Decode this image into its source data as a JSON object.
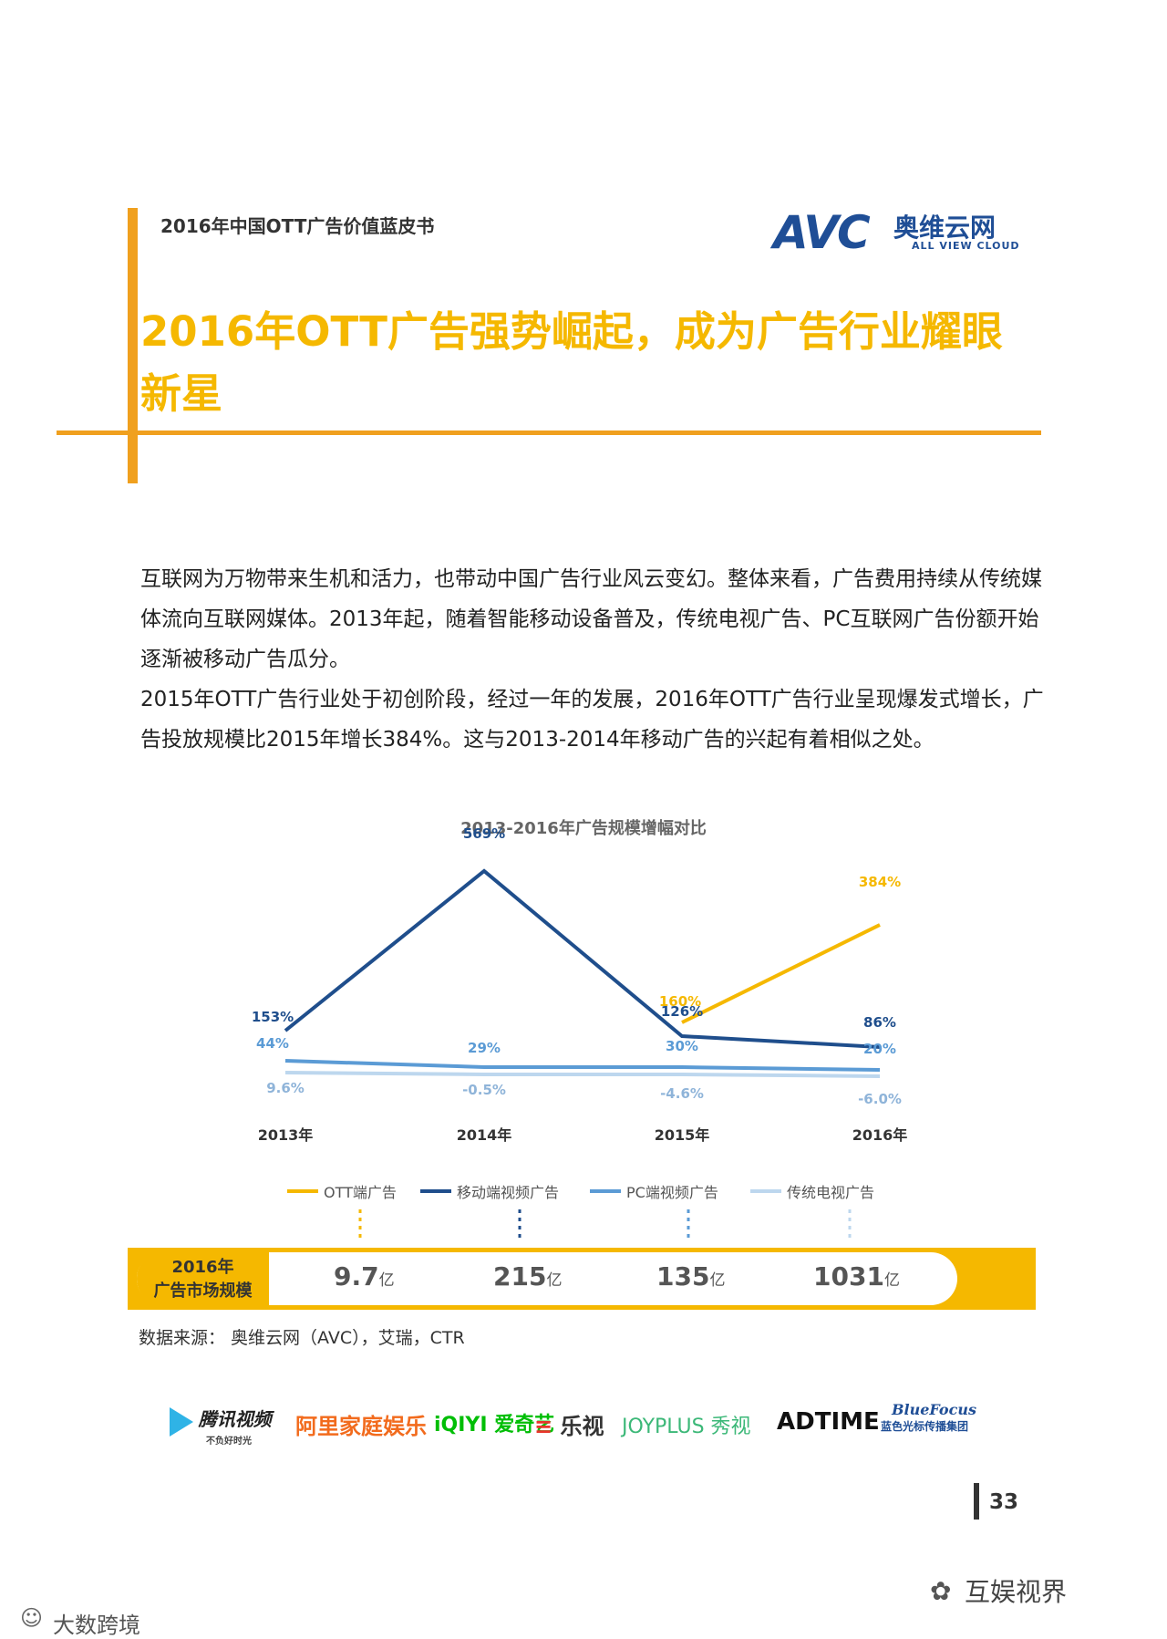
{
  "header": {
    "doc_title": "2016年中国OTT广告价值蓝皮书",
    "logo_text": "AVC",
    "logo_cn": "奥维云网",
    "logo_en": "ALL VIEW CLOUD"
  },
  "headline": "2016年OTT广告强势崛起，成为广告行业耀眼新星",
  "paragraphs": [
    "互联网为万物带来生机和活力，也带动中国广告行业风云变幻。整体来看，广告费用持续从传统媒体流向互联网媒体。2013年起，随着智能移动设备普及，传统电视广告、PC互联网广告份额开始逐渐被移动广告瓜分。",
    "2015年OTT广告行业处于初创阶段，经过一年的发展，2016年OTT广告行业呈现爆发式增长，广告投放规模比2015年增长384%。这与2013-2014年移动广告的兴起有着相似之处。"
  ],
  "chart_data": {
    "type": "line",
    "title": "2013-2016年广告规模增幅对比",
    "x": [
      "2013年",
      "2014年",
      "2015年",
      "2016年"
    ],
    "series": [
      {
        "name": "OTT端广告",
        "color": "#F5B800",
        "values": [
          null,
          null,
          160,
          384
        ],
        "labels": [
          "",
          "",
          "160%",
          "384%"
        ]
      },
      {
        "name": "移动端视频广告",
        "color": "#1F4E8C",
        "values": [
          153,
          569,
          126,
          86
        ],
        "labels": [
          "153%",
          "569%",
          "126%",
          "86%"
        ]
      },
      {
        "name": "PC端视频广告",
        "color": "#5B9BD5",
        "values": [
          44,
          29,
          30,
          20
        ],
        "labels": [
          "44%",
          "29%",
          "30%",
          "20%"
        ]
      },
      {
        "name": "传统电视广告",
        "color": "#BDD7EE",
        "values": [
          9.6,
          -0.5,
          -4.6,
          -6.0
        ],
        "labels": [
          "9.6%",
          "-0.5%",
          "-4.6%",
          "-6.0%"
        ]
      }
    ]
  },
  "market": {
    "label_line1": "2016年",
    "label_line2": "广告市场规模",
    "values": [
      {
        "num": "9.7",
        "unit": "亿"
      },
      {
        "num": "215",
        "unit": "亿"
      },
      {
        "num": "135",
        "unit": "亿"
      },
      {
        "num": "1031",
        "unit": "亿"
      }
    ]
  },
  "source": "数据来源： 奥维云网（AVC），艾瑞，CTR",
  "partners": [
    {
      "name": "腾讯视频",
      "sub": "不负好时光"
    },
    {
      "name": "阿里家庭娱乐"
    },
    {
      "name": "iQIYI 爱奇艺"
    },
    {
      "name": "乐视"
    },
    {
      "name": "JOYPLUS 秀视"
    },
    {
      "name": "ADTIME"
    },
    {
      "name": "BlueFocus",
      "sub": "蓝色光标传播集团"
    }
  ],
  "page_number": "33",
  "watermarks": {
    "right": "互娱视界",
    "left": "大数跨境"
  }
}
